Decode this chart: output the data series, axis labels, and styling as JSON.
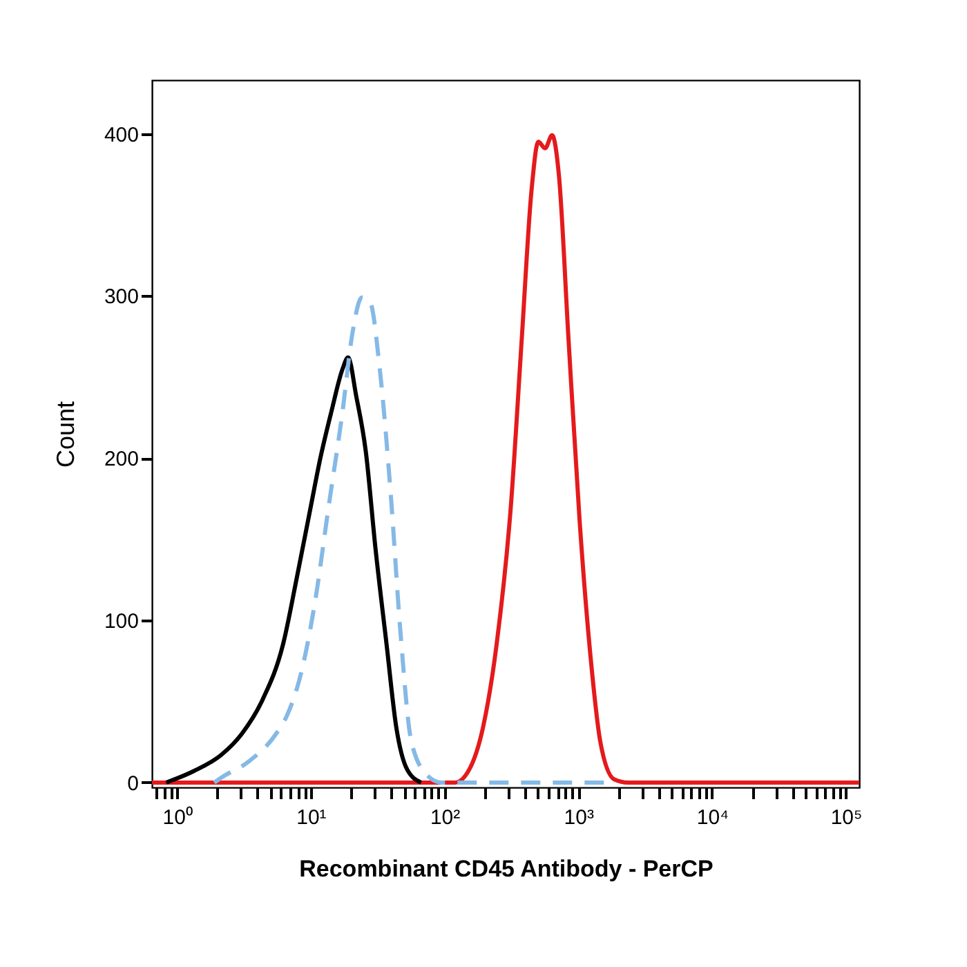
{
  "chart_data": {
    "type": "line",
    "xlabel": "Recombinant CD45 Antibody - PerCP",
    "ylabel": "Count",
    "log": "x",
    "xlim": [
      0.65,
      126000
    ],
    "ylim": [
      -3,
      433
    ],
    "xticks": [
      {
        "value": 0.7,
        "label": null
      },
      {
        "value": 0.8,
        "label": null
      },
      {
        "value": 0.9,
        "label": null
      },
      {
        "value": 1,
        "label": "10⁰"
      },
      {
        "value": 2,
        "label": null
      },
      {
        "value": 3,
        "label": null
      },
      {
        "value": 4,
        "label": null
      },
      {
        "value": 5,
        "label": null
      },
      {
        "value": 6,
        "label": null
      },
      {
        "value": 7,
        "label": null
      },
      {
        "value": 8,
        "label": null
      },
      {
        "value": 9,
        "label": null
      },
      {
        "value": 10,
        "label": "10¹"
      },
      {
        "value": 20,
        "label": null
      },
      {
        "value": 30,
        "label": null
      },
      {
        "value": 40,
        "label": null
      },
      {
        "value": 50,
        "label": null
      },
      {
        "value": 60,
        "label": null
      },
      {
        "value": 70,
        "label": null
      },
      {
        "value": 80,
        "label": null
      },
      {
        "value": 90,
        "label": null
      },
      {
        "value": 100,
        "label": "10²"
      },
      {
        "value": 200,
        "label": null
      },
      {
        "value": 300,
        "label": null
      },
      {
        "value": 400,
        "label": null
      },
      {
        "value": 500,
        "label": null
      },
      {
        "value": 600,
        "label": null
      },
      {
        "value": 700,
        "label": null
      },
      {
        "value": 800,
        "label": null
      },
      {
        "value": 900,
        "label": null
      },
      {
        "value": 1000,
        "label": "10³"
      },
      {
        "value": 2000,
        "label": null
      },
      {
        "value": 3000,
        "label": null
      },
      {
        "value": 4000,
        "label": null
      },
      {
        "value": 5000,
        "label": null
      },
      {
        "value": 6000,
        "label": null
      },
      {
        "value": 7000,
        "label": null
      },
      {
        "value": 8000,
        "label": null
      },
      {
        "value": 9000,
        "label": null
      },
      {
        "value": 10000,
        "label": "10⁴"
      },
      {
        "value": 20000,
        "label": null
      },
      {
        "value": 30000,
        "label": null
      },
      {
        "value": 40000,
        "label": null
      },
      {
        "value": 50000,
        "label": null
      },
      {
        "value": 60000,
        "label": null
      },
      {
        "value": 70000,
        "label": null
      },
      {
        "value": 80000,
        "label": null
      },
      {
        "value": 90000,
        "label": null
      },
      {
        "value": 100000,
        "label": "10⁵"
      }
    ],
    "yticks": [
      0,
      100,
      200,
      300,
      400
    ],
    "grid": false,
    "legend": false,
    "marker": "none",
    "series": [
      {
        "color": "#e41a1c",
        "line_style": "solid",
        "x": [
          0.65,
          120,
          153,
          194,
          245,
          313,
          377,
          447,
          503,
          565,
          637,
          717,
          847,
          1024,
          1240,
          1462,
          1854,
          2350,
          126000
        ],
        "values": [
          0,
          0,
          8,
          34,
          85,
          170,
          272,
          365,
          395,
          391,
          399,
          374,
          272,
          161,
          76,
          25,
          2,
          0,
          0
        ]
      },
      {
        "color": "#000000",
        "line_style": "solid",
        "x": [
          0.83,
          1.33,
          2.14,
          3.05,
          4.36,
          6.2,
          7.9,
          10,
          11.8,
          14.3,
          17.3,
          19,
          21.9,
          25.8,
          30.5,
          36.9,
          43.6,
          52.6,
          66.8
        ],
        "values": [
          0,
          7,
          17,
          30,
          51,
          85,
          127,
          170,
          200,
          229,
          255,
          262,
          238,
          204,
          144,
          85,
          34,
          8,
          0
        ]
      },
      {
        "color": "#85b9e6",
        "line_style": "dashed",
        "x": [
          1.9,
          2.14,
          3.44,
          5.5,
          6.7,
          8.5,
          10.7,
          13.6,
          17.3,
          20.4,
          24.1,
          27.8,
          32.8,
          39.6,
          46.8,
          56.6,
          75.2,
          95,
          1600
        ],
        "values": [
          0,
          3,
          13,
          30,
          42,
          68,
          110,
          170,
          229,
          276,
          299,
          296,
          255,
          178,
          93,
          25,
          4,
          0,
          0
        ]
      }
    ]
  }
}
